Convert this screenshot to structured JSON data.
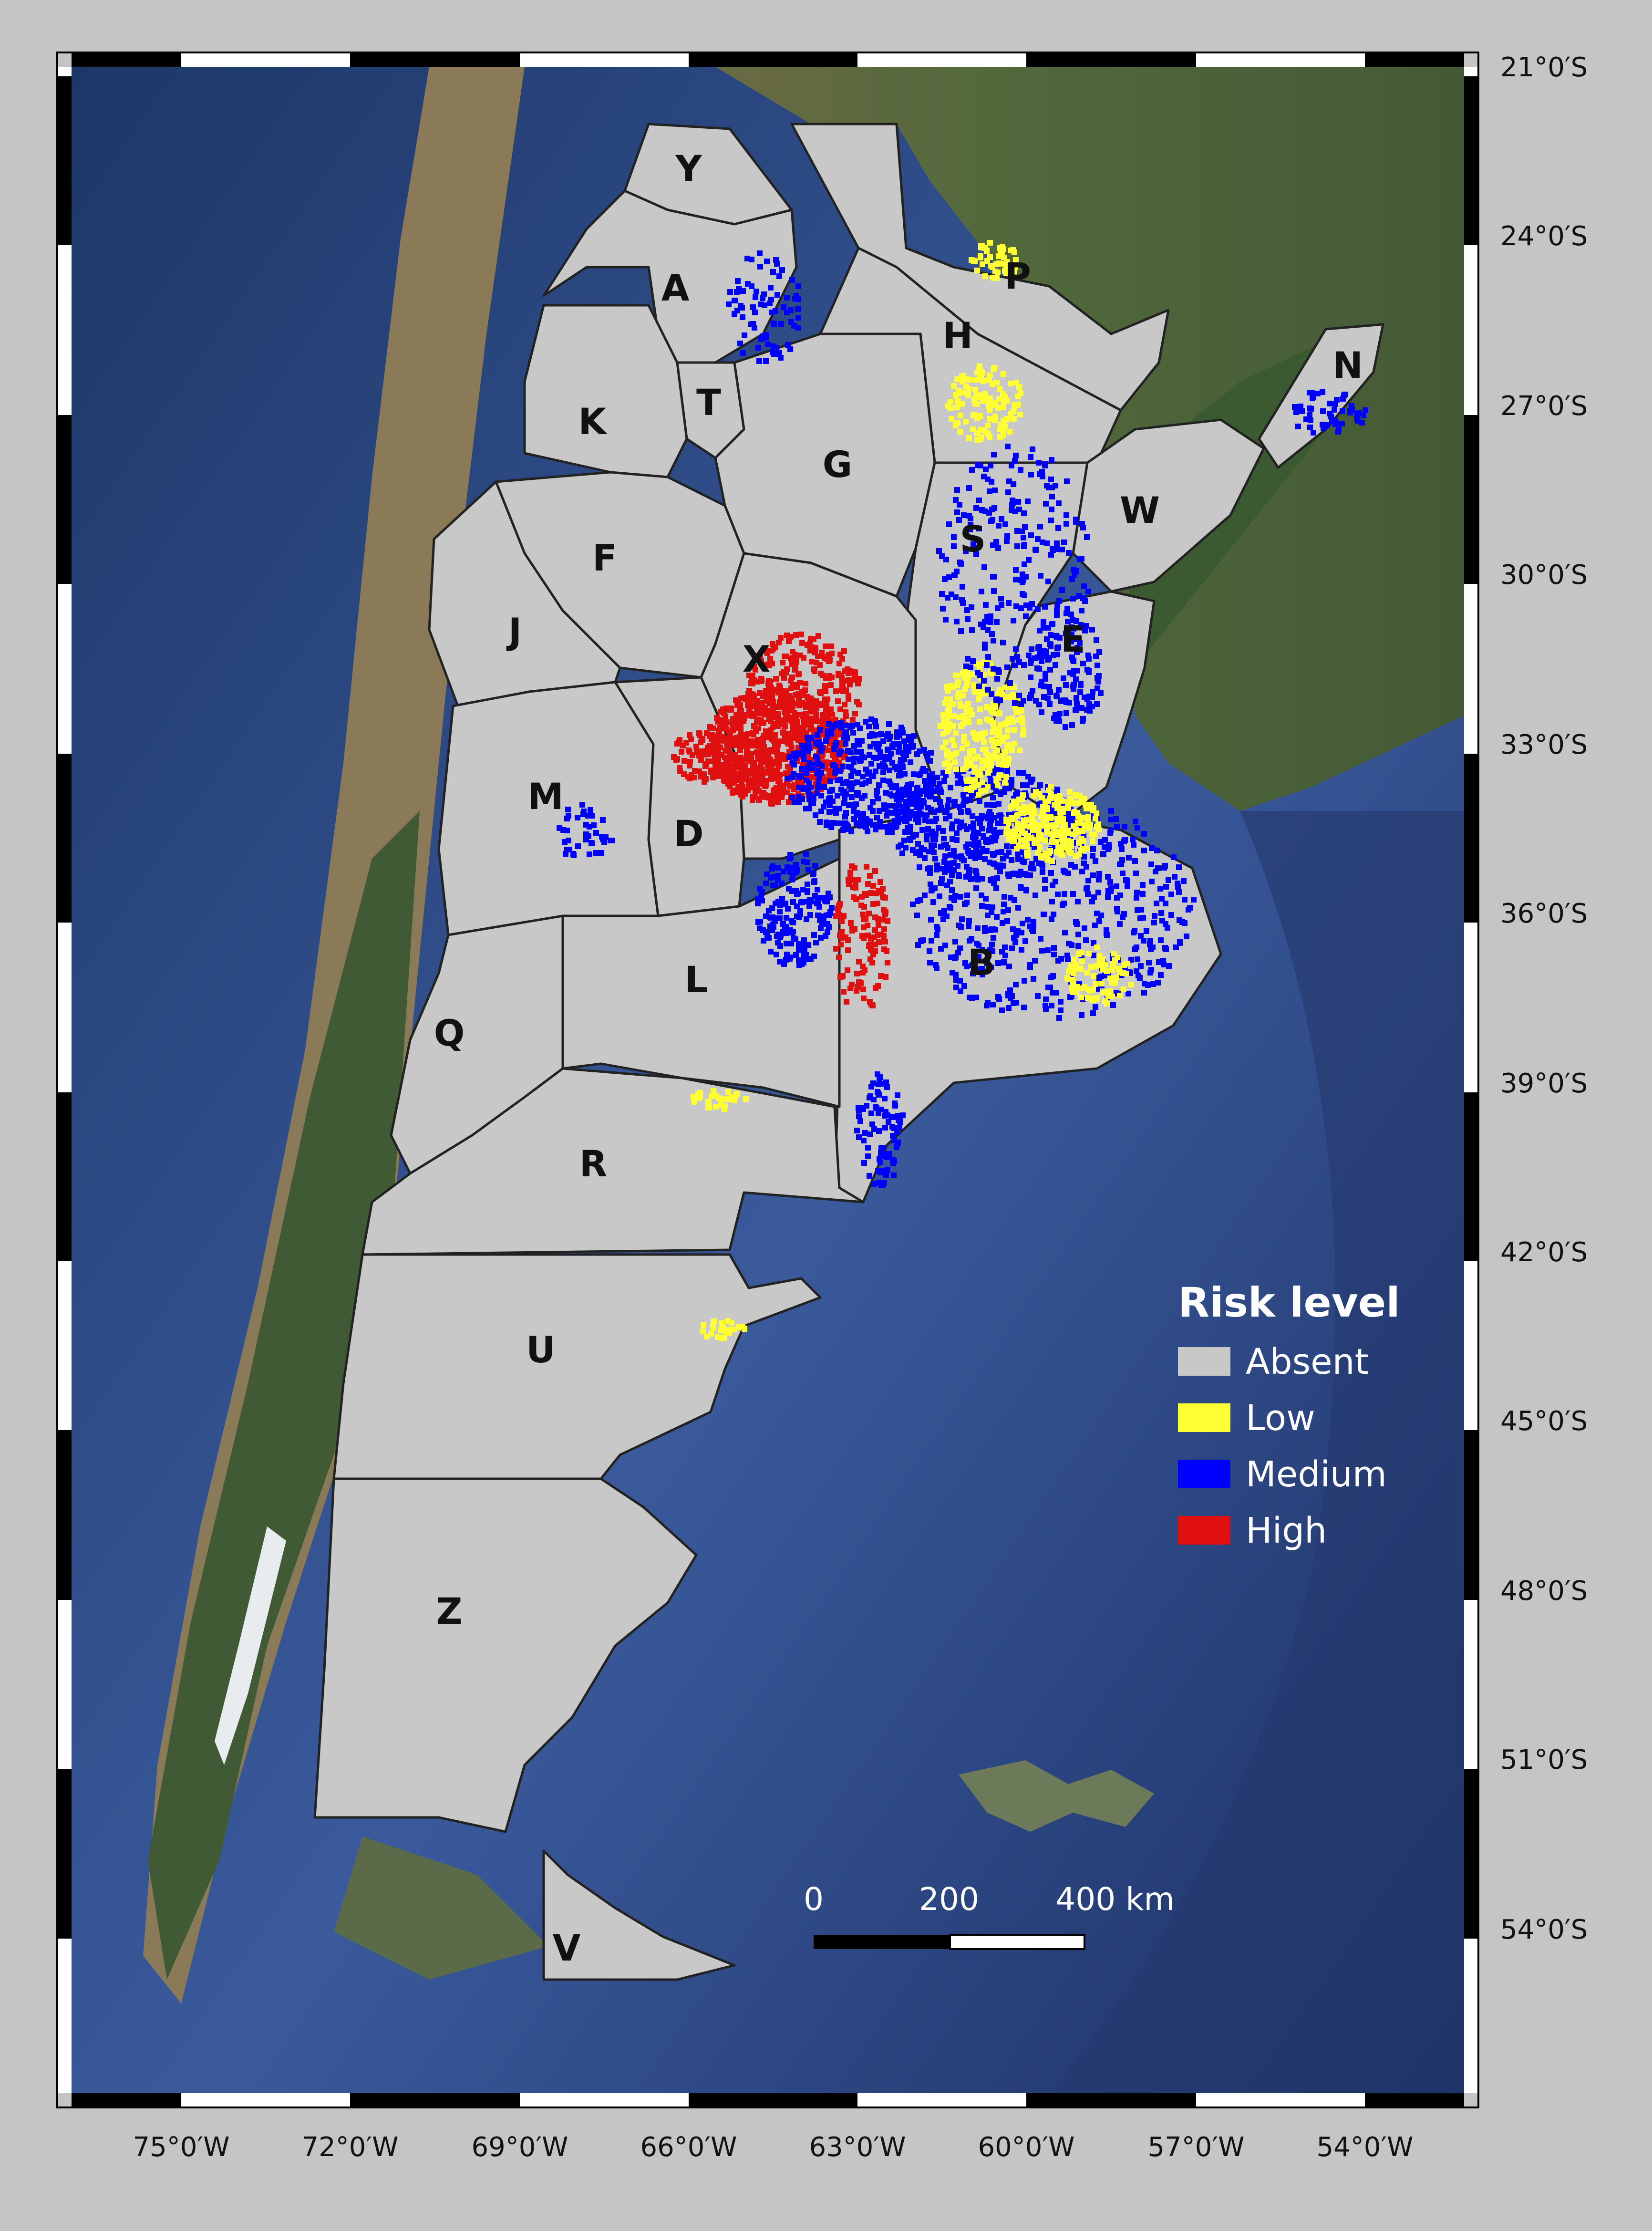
{
  "legend": {
    "title": "Risk level",
    "items": [
      {
        "label": "Absent",
        "color": "#c8c8c8"
      },
      {
        "label": "Low",
        "color": "#ffff33"
      },
      {
        "label": "Medium",
        "color": "#0000ff"
      },
      {
        "label": "High",
        "color": "#e01010"
      }
    ]
  },
  "scale_bar": {
    "labels": [
      "0",
      "200",
      "400 km"
    ]
  },
  "lat_labels": [
    "21°0′S",
    "24°0′S",
    "27°0′S",
    "30°0′S",
    "33°0′S",
    "36°0′S",
    "39°0′S",
    "42°0′S",
    "45°0′S",
    "48°0′S",
    "51°0′S",
    "54°0′S"
  ],
  "lon_labels": [
    "75°0′W",
    "72°0′W",
    "69°0′W",
    "66°0′W",
    "63°0′W",
    "60°0′W",
    "57°0′W",
    "54°0′W"
  ],
  "provinces": [
    {
      "code": "Y"
    },
    {
      "code": "A"
    },
    {
      "code": "P"
    },
    {
      "code": "H"
    },
    {
      "code": "N"
    },
    {
      "code": "T"
    },
    {
      "code": "K"
    },
    {
      "code": "G"
    },
    {
      "code": "W"
    },
    {
      "code": "S"
    },
    {
      "code": "F"
    },
    {
      "code": "J"
    },
    {
      "code": "X"
    },
    {
      "code": "E"
    },
    {
      "code": "M"
    },
    {
      "code": "D"
    },
    {
      "code": "B"
    },
    {
      "code": "L"
    },
    {
      "code": "Q"
    },
    {
      "code": "R"
    },
    {
      "code": "U"
    },
    {
      "code": "Z"
    },
    {
      "code": "V"
    }
  ],
  "colors": {
    "ocean": "#2f4f8f",
    "land": "#4d6a3b",
    "andes": "#9a8a6a",
    "province": "#c8c8c8",
    "border": "#222222"
  }
}
